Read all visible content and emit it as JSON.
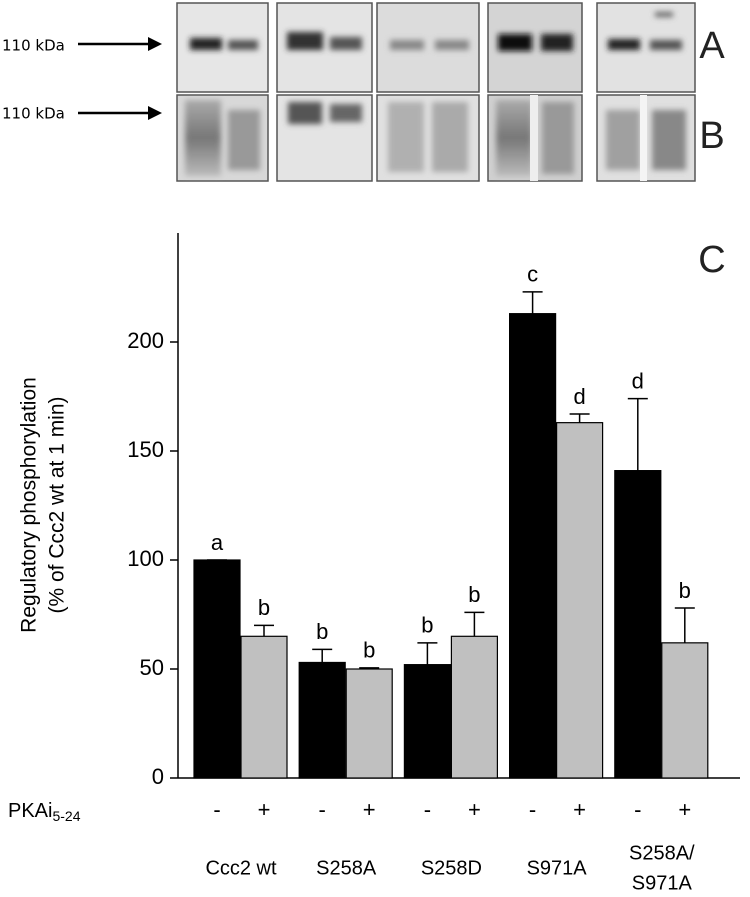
{
  "blots": {
    "rows": [
      {
        "label": "110 kDa",
        "letter": "A"
      },
      {
        "label": "110 kDa",
        "letter": "B"
      }
    ]
  },
  "chart_data": {
    "type": "bar",
    "panel_letter": "C",
    "y_label": [
      "Regulatory phosphorylation",
      "(% of Ccc2 wt at 1 min)"
    ],
    "treatment_label": {
      "text": "PKAi",
      "subscript": "5-24"
    },
    "categories": [
      [
        "Ccc2 wt"
      ],
      [
        "S258A"
      ],
      [
        "S258D"
      ],
      [
        "S971A"
      ],
      [
        "S258A/",
        "S971A"
      ]
    ],
    "series": [
      {
        "name": "-",
        "color": "#000000",
        "values": [
          100,
          53,
          52,
          213,
          141
        ],
        "errors": [
          0,
          6,
          10,
          10,
          33
        ],
        "letters": [
          "a",
          "b",
          "b",
          "c",
          "d"
        ]
      },
      {
        "name": "+",
        "color": "#c0c0c0",
        "values": [
          65,
          50,
          65,
          163,
          62
        ],
        "errors": [
          5,
          0.5,
          11,
          4,
          16
        ],
        "letters": [
          "b",
          "b",
          "b",
          "d",
          "b"
        ]
      }
    ],
    "ylim": [
      0,
      250
    ],
    "yticks": [
      0,
      50,
      100,
      150,
      200
    ]
  }
}
